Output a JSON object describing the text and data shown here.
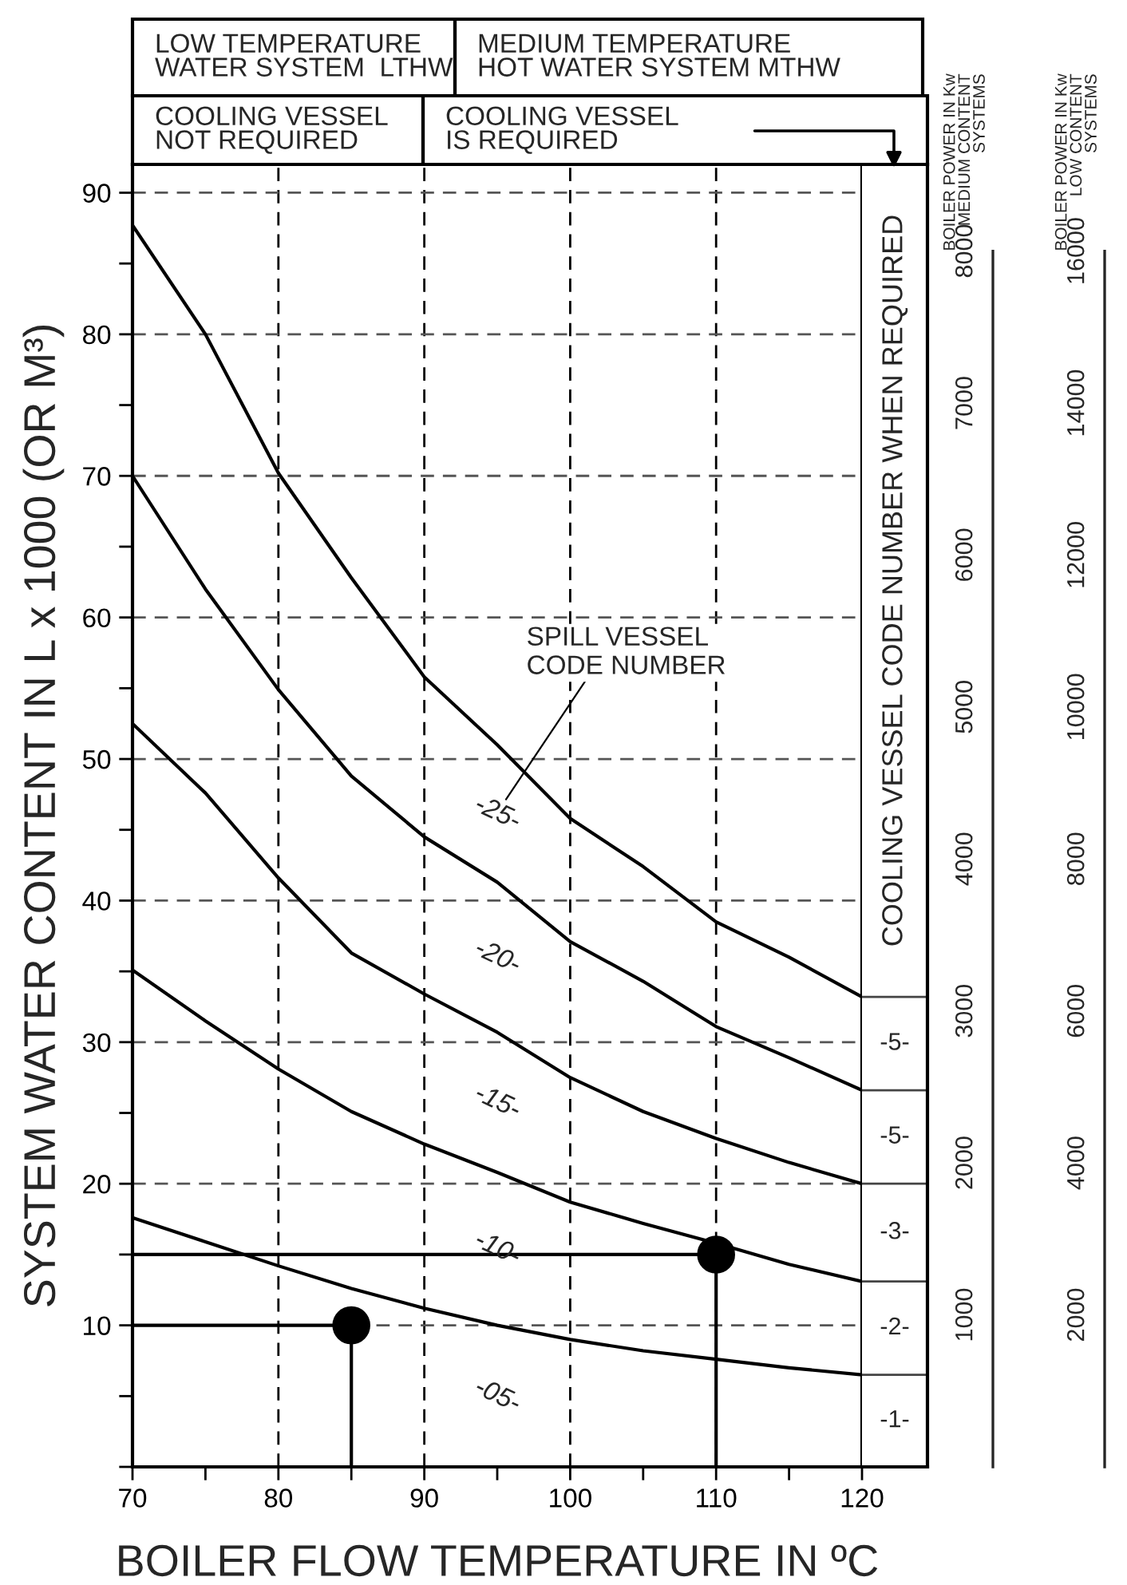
{
  "chart_data": {
    "type": "line",
    "xlabel": "BOILER FLOW TEMPERATURE IN ºC",
    "ylabel": "SYSTEM WATER CONTENT IN L x 1000 (OR M³)",
    "y2label": "BOILER POWER IN Kw\nMEDIUM CONTENT\nSYSTEMS",
    "y3label": "BOILER POWER IN Kw\nLOW CONTENT\nSYSTEMS",
    "xlim": [
      70,
      120
    ],
    "ylim": [
      0,
      92
    ],
    "xticks": [
      70,
      {
        "value": 75,
        "label": null
      },
      80,
      {
        "value": 85,
        "label": null
      },
      90,
      {
        "value": 95,
        "label": null
      },
      100,
      {
        "value": 105,
        "label": null
      },
      110,
      {
        "value": 115,
        "label": null
      },
      120
    ],
    "yticks": [
      {
        "value": 0,
        "label": null
      },
      {
        "value": 5,
        "label": null
      },
      10,
      {
        "value": 15,
        "label": null
      },
      20,
      {
        "value": 25,
        "label": null
      },
      30,
      {
        "value": 35,
        "label": null
      },
      40,
      {
        "value": 45,
        "label": null
      },
      50,
      {
        "value": 55,
        "label": null
      },
      60,
      {
        "value": 65,
        "label": null
      },
      70,
      {
        "value": 75,
        "label": null
      },
      80,
      {
        "value": 85,
        "label": null
      },
      90
    ],
    "y2lim": [
      0,
      8570
    ],
    "y2ticks": [
      1000,
      2000,
      3000,
      4000,
      5000,
      6000,
      7000,
      8000
    ],
    "y3lim": [
      0,
      17140
    ],
    "y3ticks": [
      2000,
      4000,
      6000,
      8000,
      10000,
      12000,
      14000,
      16000
    ],
    "grid": true,
    "series": [
      {
        "type": "line",
        "color": "#000000",
        "x": [
          70,
          75,
          80,
          85,
          90,
          95,
          100,
          105,
          110,
          115,
          120
        ],
        "values": [
          87.7,
          80.0,
          70.2,
          62.8,
          55.8,
          51.0,
          45.8,
          42.4,
          38.5,
          36.0,
          33.2
        ]
      },
      {
        "type": "line",
        "color": "#000000",
        "x": [
          70,
          75,
          80,
          85,
          90,
          95,
          100,
          105,
          110,
          115,
          120
        ],
        "values": [
          70.0,
          62.0,
          54.9,
          48.8,
          44.5,
          41.3,
          37.1,
          34.3,
          31.1,
          28.9,
          26.6
        ]
      },
      {
        "type": "line",
        "color": "#000000",
        "x": [
          70,
          75,
          80,
          85,
          90,
          95,
          100,
          105,
          110,
          115,
          120
        ],
        "values": [
          52.5,
          47.6,
          41.6,
          36.3,
          33.4,
          30.7,
          27.5,
          25.1,
          23.2,
          21.5,
          20.0
        ]
      },
      {
        "type": "line",
        "color": "#000000",
        "x": [
          70,
          75,
          80,
          85,
          90,
          95,
          100,
          105,
          110,
          115,
          120
        ],
        "values": [
          35.1,
          31.5,
          28.1,
          25.1,
          22.8,
          20.8,
          18.7,
          17.2,
          15.8,
          14.3,
          13.1
        ]
      },
      {
        "type": "line",
        "color": "#000000",
        "x": [
          70,
          75,
          80,
          85,
          90,
          95,
          100,
          105,
          110,
          115,
          120
        ],
        "values": [
          17.6,
          15.9,
          14.2,
          12.6,
          11.2,
          10.0,
          9.0,
          8.2,
          7.6,
          7.0,
          6.5
        ]
      },
      {
        "type": "line",
        "color": "#000000",
        "x": [
          70,
          85,
          85
        ],
        "values": [
          10,
          10,
          0
        ]
      },
      {
        "type": "line",
        "color": "#000000",
        "x": [
          70,
          110,
          110
        ],
        "values": [
          15,
          15,
          0
        ]
      },
      {
        "type": "scatter",
        "color": "#000000",
        "marker": "circle",
        "x": [
          85,
          110
        ],
        "values": [
          10,
          15
        ]
      }
    ],
    "annotations": [
      "LOW TEMPERATURE\nWATER SYSTEM  LTHW",
      "MEDIUM TEMPERATURE\nHOT WATER SYSTEM MTHW",
      "COOLING VESSEL\nNOT REQUIRED",
      "COOLING VESSEL\nIS REQUIRED",
      "COOLING VESSEL CODE NUMBER WHEN REQUIRED",
      "-5-",
      "-5-",
      "-3-",
      "-2-",
      "-1-",
      "SPILL VESSEL\nCODE NUMBER",
      "-25-",
      "-20-",
      "-15-",
      "-10-",
      "-05-"
    ]
  }
}
